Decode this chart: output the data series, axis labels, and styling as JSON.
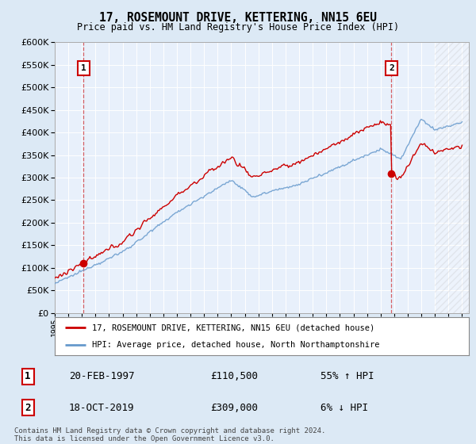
{
  "title": "17, ROSEMOUNT DRIVE, KETTERING, NN15 6EU",
  "subtitle": "Price paid vs. HM Land Registry's House Price Index (HPI)",
  "bg_color": "#dce9f5",
  "plot_bg_color": "#e8f0fb",
  "grid_color": "#ffffff",
  "red_line_color": "#cc0000",
  "blue_line_color": "#6699cc",
  "marker_color": "#cc0000",
  "sale1_year": 1997.13,
  "sale1_price": 110500,
  "sale2_year": 2019.79,
  "sale2_price": 309000,
  "ymin": 0,
  "ymax": 600000,
  "ytick_step": 50000,
  "legend_line1": "17, ROSEMOUNT DRIVE, KETTERING, NN15 6EU (detached house)",
  "legend_line2": "HPI: Average price, detached house, North Northamptonshire",
  "annot1_label": "1",
  "annot1_date": "20-FEB-1997",
  "annot1_price": "£110,500",
  "annot1_hpi": "55% ↑ HPI",
  "annot2_label": "2",
  "annot2_date": "18-OCT-2019",
  "annot2_price": "£309,000",
  "annot2_hpi": "6% ↓ HPI",
  "footnote": "Contains HM Land Registry data © Crown copyright and database right 2024.\nThis data is licensed under the Open Government Licence v3.0."
}
